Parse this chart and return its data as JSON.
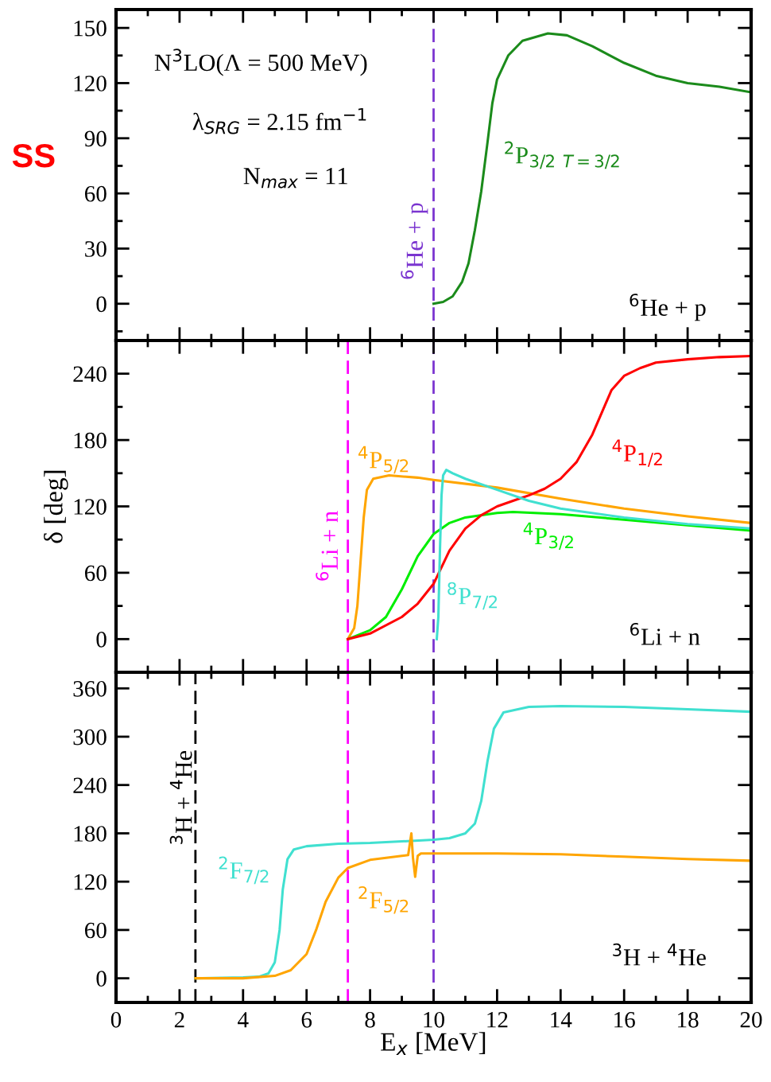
{
  "chart_data": [
    {
      "type": "line",
      "xlim": [
        0,
        20
      ],
      "xticks": [
        0,
        {
          "value": 1,
          "label": null
        },
        2,
        {
          "value": 3,
          "label": null
        },
        4,
        {
          "value": 5,
          "label": null
        },
        6,
        {
          "value": 7,
          "label": null
        },
        8,
        {
          "value": 9,
          "label": null
        },
        10,
        {
          "value": 11,
          "label": null
        },
        12,
        {
          "value": 13,
          "label": null
        },
        14,
        {
          "value": 15,
          "label": null
        },
        16,
        {
          "value": 17,
          "label": null
        },
        18,
        {
          "value": 19,
          "label": null
        },
        20
      ],
      "ylim": [
        -20,
        160
      ],
      "yticks": [
        {
          "value": -15,
          "label": null
        },
        0,
        {
          "value": 15,
          "label": null
        },
        30,
        {
          "value": 45,
          "label": null
        },
        60,
        {
          "value": 75,
          "label": null
        },
        90,
        {
          "value": 105,
          "label": null
        },
        120,
        {
          "value": 135,
          "label": null
        },
        150
      ],
      "tick_labels": "y",
      "grid": false,
      "legend": false,
      "annotations": [
        "N$^{3}$LO(Λ = 500 MeV)",
        "λ$_{SRG}$ = 2.15 fm$^{−1}$",
        "N$_{max}$ = 11",
        "$^{6}$He + p",
        "SS"
      ],
      "ref_lines": [
        {
          "axis": "x",
          "value": 10,
          "label": "$^{6}$He + p",
          "color": "#7b35d0",
          "line_style": "dashed"
        }
      ],
      "series": [
        {
          "name": "$^{2}$P$_{3/2}$ $_{T=3/2}$",
          "color": "#1b8b1b",
          "x": [
            10,
            10.3,
            10.6,
            10.9,
            11.1,
            11.3,
            11.5,
            11.7,
            11.85,
            12.0,
            12.35,
            12.8,
            13.6,
            14.2,
            15,
            16,
            17,
            18,
            19,
            20
          ],
          "values": [
            0,
            1,
            4,
            12,
            22,
            40,
            61,
            88,
            109,
            122,
            135,
            143,
            147,
            146,
            140,
            131,
            124,
            120,
            118,
            115
          ]
        }
      ]
    },
    {
      "type": "line",
      "xlim": [
        0,
        20
      ],
      "xticks": [
        0,
        {
          "value": 1,
          "label": null
        },
        2,
        {
          "value": 3,
          "label": null
        },
        4,
        {
          "value": 5,
          "label": null
        },
        6,
        {
          "value": 7,
          "label": null
        },
        8,
        {
          "value": 9,
          "label": null
        },
        10,
        {
          "value": 11,
          "label": null
        },
        12,
        {
          "value": 13,
          "label": null
        },
        14,
        {
          "value": 15,
          "label": null
        },
        16,
        {
          "value": 17,
          "label": null
        },
        18,
        {
          "value": 19,
          "label": null
        },
        20
      ],
      "ylim": [
        -30,
        270
      ],
      "yticks": [
        {
          "value": -30,
          "label": null
        },
        0,
        {
          "value": 30,
          "label": null
        },
        60,
        {
          "value": 90,
          "label": null
        },
        120,
        {
          "value": 150,
          "label": null
        },
        180,
        {
          "value": 210,
          "label": null
        },
        240
      ],
      "tick_labels": "y",
      "grid": false,
      "legend": false,
      "ylabel": "δ [deg]",
      "annotations": [
        "$^{6}$Li + n"
      ],
      "ref_lines": [
        {
          "axis": "x",
          "value": 7.3,
          "label": "$^{6}$Li + n",
          "color": "#ff00ff",
          "line_style": "dashed"
        },
        {
          "axis": "x",
          "value": 10,
          "color": "#7b35d0",
          "line_style": "dashed"
        }
      ],
      "series": [
        {
          "name": "$^{4}$P$_{5/2}$",
          "color": "#ffa500",
          "x": [
            7.3,
            7.5,
            7.6,
            7.7,
            7.8,
            7.9,
            8.1,
            8.6,
            9.5,
            10,
            12,
            14,
            16,
            18,
            20
          ],
          "values": [
            0,
            10,
            30,
            70,
            110,
            135,
            145,
            148,
            146,
            144,
            137,
            127,
            118,
            111,
            105
          ]
        },
        {
          "name": "$^{4}$P$_{3/2}$",
          "color": "#00ee00",
          "x": [
            7.3,
            8,
            8.5,
            9,
            9.5,
            10,
            10.5,
            11,
            12,
            12.5,
            14,
            16,
            18,
            20
          ],
          "values": [
            0,
            8,
            20,
            45,
            75,
            95,
            105,
            110,
            114,
            115,
            113,
            108,
            103,
            98
          ]
        },
        {
          "name": "$^{4}$P$_{1/2}$",
          "color": "#ff0000",
          "x": [
            7.3,
            8,
            9,
            9.5,
            10,
            10.5,
            11,
            11.5,
            12,
            12.5,
            13,
            13.5,
            14,
            14.5,
            15,
            15.3,
            15.6,
            16,
            16.5,
            17,
            18,
            19,
            20
          ],
          "values": [
            0,
            5,
            20,
            32,
            50,
            80,
            100,
            112,
            120,
            125,
            130,
            136,
            145,
            160,
            185,
            205,
            225,
            238,
            245,
            250,
            253,
            255,
            256
          ]
        },
        {
          "name": "$^{8}$P$_{7/2}$",
          "color": "#40e0d0",
          "x": [
            10.1,
            10.15,
            10.2,
            10.25,
            10.3,
            10.4,
            10.6,
            11,
            12,
            13,
            14,
            16,
            18,
            20
          ],
          "values": [
            0,
            20,
            80,
            130,
            148,
            153,
            150,
            145,
            135,
            125,
            118,
            110,
            104,
            100
          ]
        }
      ]
    },
    {
      "type": "line",
      "xlim": [
        0,
        20
      ],
      "xticks": [
        0,
        {
          "value": 1,
          "label": null
        },
        2,
        {
          "value": 3,
          "label": null
        },
        4,
        {
          "value": 5,
          "label": null
        },
        6,
        {
          "value": 7,
          "label": null
        },
        8,
        {
          "value": 9,
          "label": null
        },
        10,
        {
          "value": 11,
          "label": null
        },
        12,
        {
          "value": 13,
          "label": null
        },
        14,
        {
          "value": 15,
          "label": null
        },
        16,
        {
          "value": 17,
          "label": null
        },
        18,
        {
          "value": 19,
          "label": null
        },
        20
      ],
      "ylim": [
        -30,
        380
      ],
      "yticks": [
        0,
        60,
        120,
        180,
        240,
        300,
        360
      ],
      "grid": false,
      "legend": false,
      "xlabel": "E$_{x}$ [MeV]",
      "annotations": [
        "$^{3}$H + $^{4}$He"
      ],
      "ref_lines": [
        {
          "axis": "x",
          "value": 2.5,
          "label": "$^{3}$H + $^{4}$He",
          "color": "#000000",
          "line_style": "dashed"
        },
        {
          "axis": "x",
          "value": 7.3,
          "color": "#ff00ff",
          "line_style": "dashed"
        },
        {
          "axis": "x",
          "value": 10,
          "color": "#7b35d0",
          "line_style": "dashed"
        }
      ],
      "series": [
        {
          "name": "$^{2}$F$_{7/2}$",
          "color": "#40e0d0",
          "x": [
            2.5,
            4,
            4.5,
            4.8,
            5.0,
            5.15,
            5.25,
            5.4,
            5.6,
            6,
            7,
            8,
            9,
            10,
            10.5,
            11,
            11.3,
            11.5,
            11.7,
            11.9,
            12.2,
            13,
            14,
            16,
            18,
            20
          ],
          "values": [
            0,
            1,
            2,
            6,
            20,
            60,
            110,
            148,
            160,
            164,
            167,
            168,
            170,
            172,
            174,
            180,
            192,
            220,
            270,
            310,
            330,
            337,
            338,
            337,
            334,
            331
          ]
        },
        {
          "name": "$^{2}$F$_{5/2}$",
          "color": "#ffa500",
          "x": [
            2.5,
            4,
            5,
            5.5,
            6,
            6.3,
            6.6,
            7,
            7.3,
            8,
            9,
            9.2,
            9.3,
            9.35,
            9.42,
            9.5,
            9.6,
            10,
            12,
            14,
            16,
            18,
            20
          ],
          "values": [
            0,
            0,
            3,
            10,
            30,
            60,
            95,
            125,
            137,
            147,
            152,
            153,
            180,
            150,
            126,
            152,
            155,
            155,
            155,
            154,
            151,
            148,
            146
          ]
        }
      ]
    }
  ]
}
